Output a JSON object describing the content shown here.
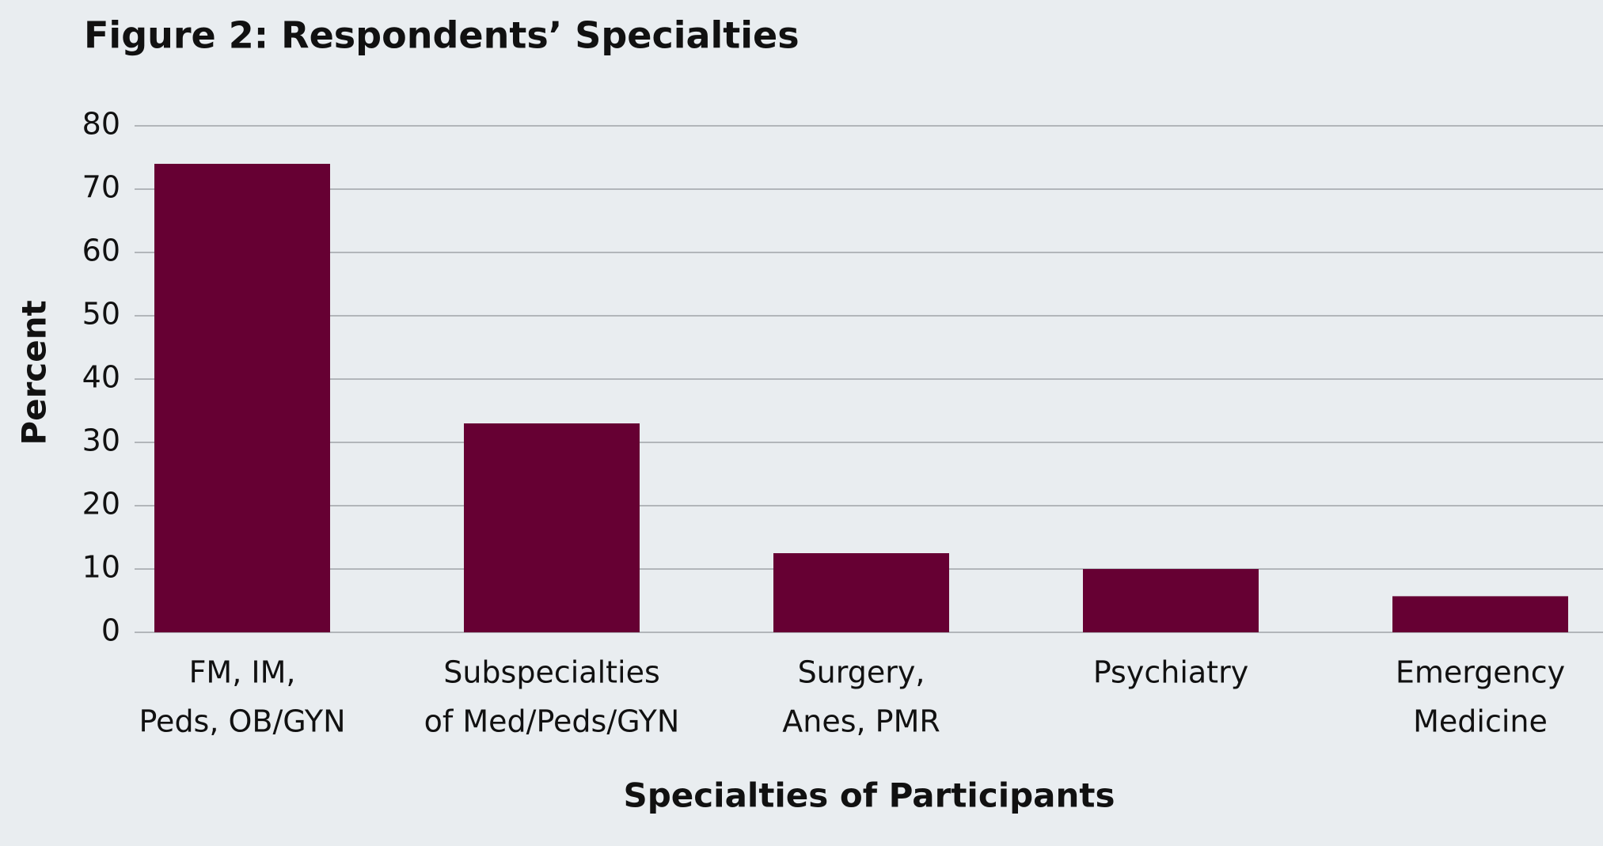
{
  "chart_data": {
    "type": "bar",
    "title": "Figure 2: Respondents’ Specialties",
    "x_label": "Specialties of Participants",
    "y_label": "Percent",
    "categories": [
      [
        "FM, IM,",
        "Peds, OB/GYN"
      ],
      [
        "Subspecialties",
        "of Med/Peds/GYN"
      ],
      [
        "Surgery,",
        "Anes, PMR"
      ],
      [
        "Psychiatry"
      ],
      [
        "Emergency",
        "Medicine"
      ]
    ],
    "values": [
      74,
      33,
      12.5,
      10,
      5.7
    ],
    "color": "#660033",
    "ylim": [
      0,
      80
    ],
    "yticks": [
      0,
      10,
      20,
      30,
      40,
      50,
      60,
      70,
      80
    ],
    "grid": true
  }
}
